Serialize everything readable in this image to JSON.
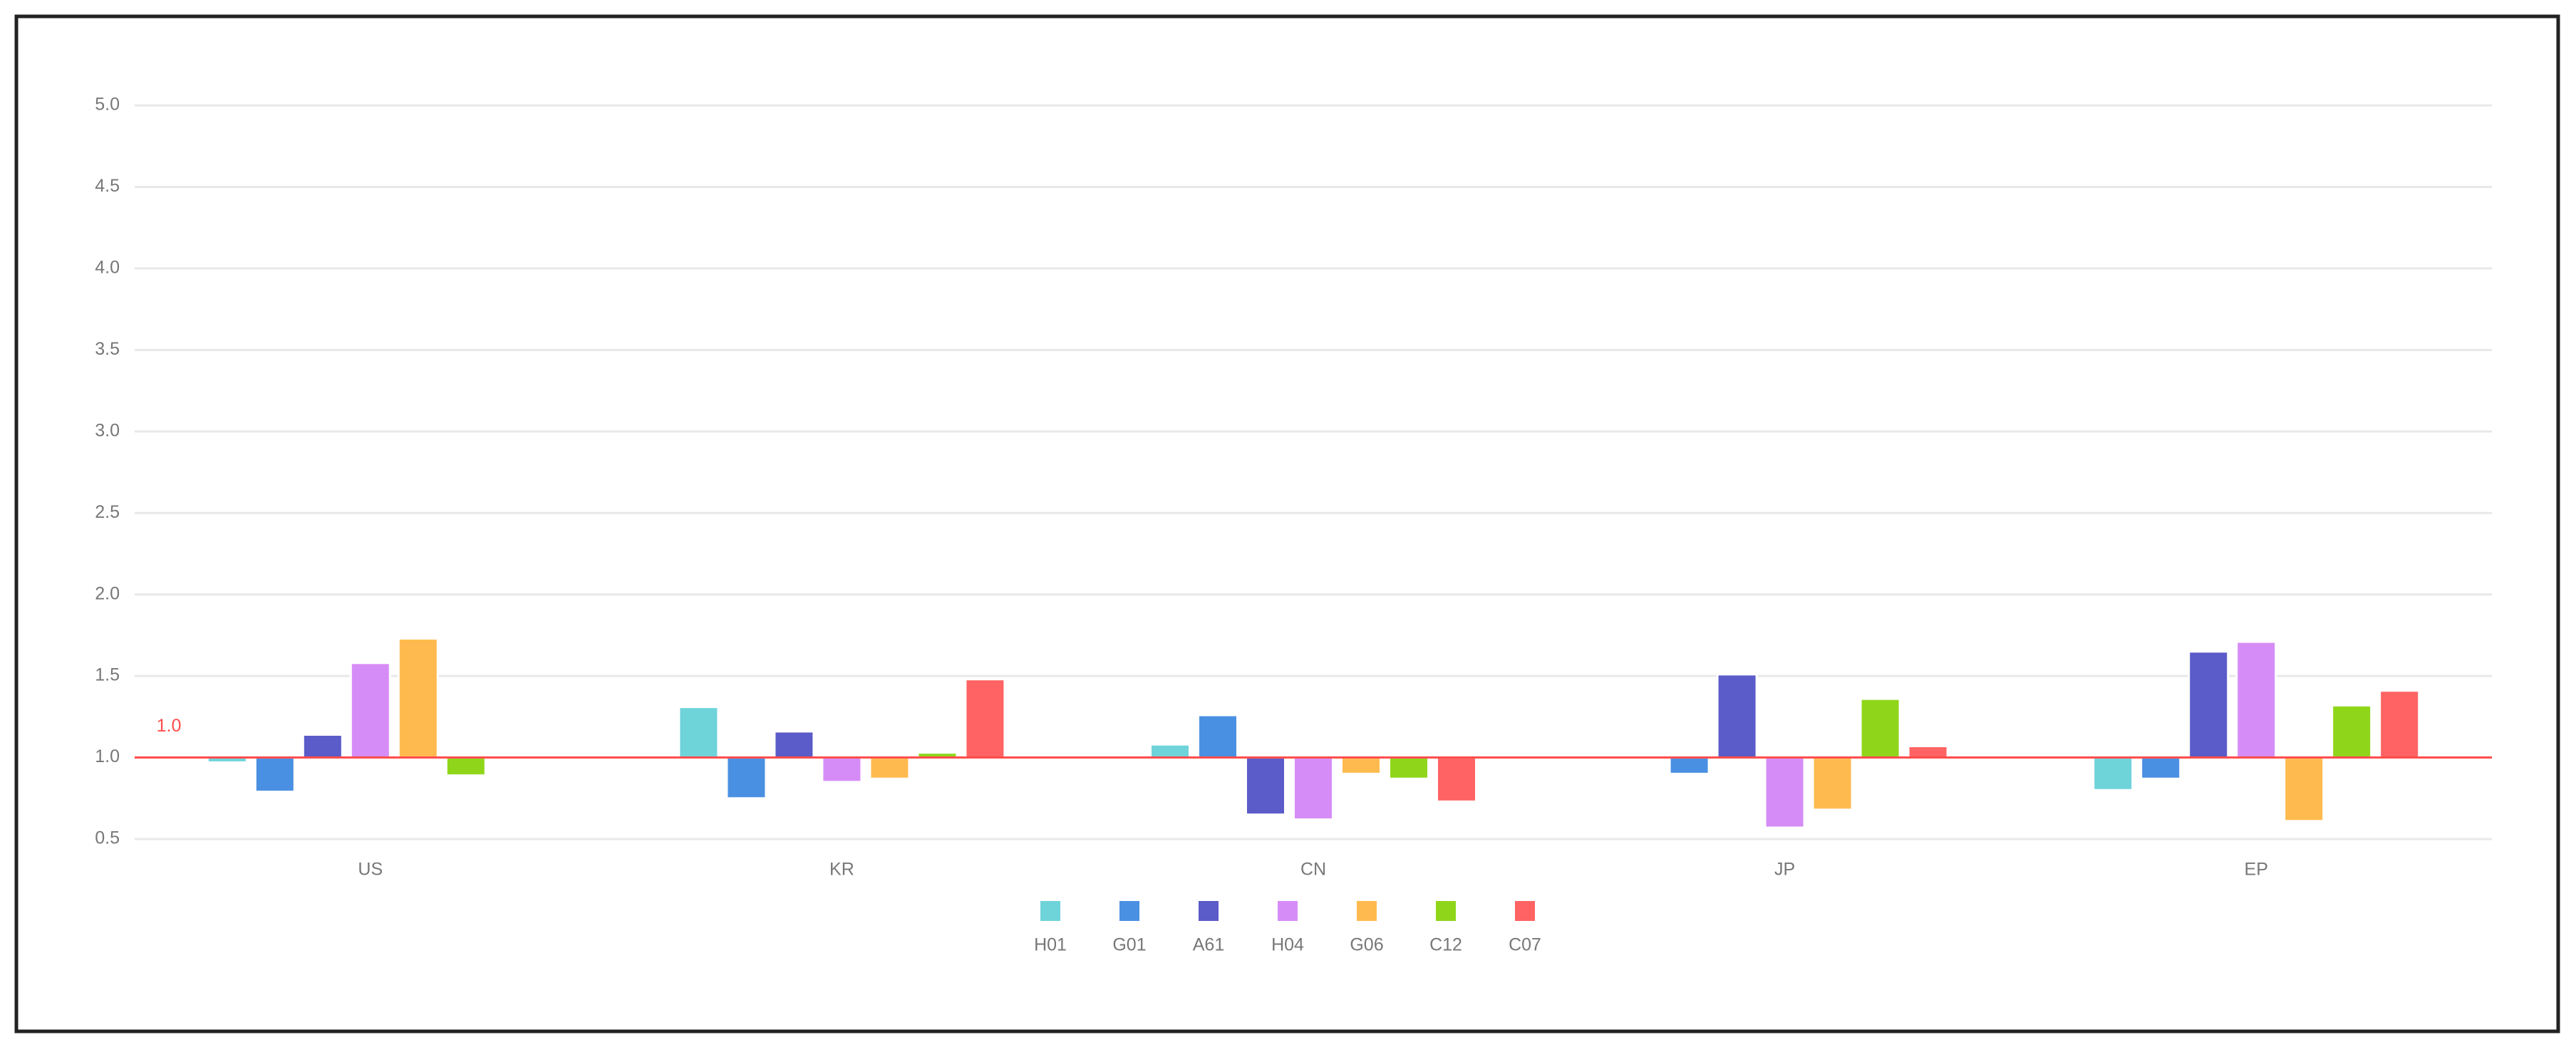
{
  "chart_data": {
    "type": "bar",
    "categories": [
      "US",
      "KR",
      "CN",
      "JP",
      "EP"
    ],
    "series": [
      {
        "name": "H01",
        "color": "#6fd3da",
        "values": [
          0.97,
          1.31,
          1.08,
          1.0,
          0.8
        ]
      },
      {
        "name": "G01",
        "color": "#4a90e2",
        "values": [
          0.79,
          0.75,
          1.26,
          0.9,
          0.87
        ]
      },
      {
        "name": "A61",
        "color": "#5b5bc9",
        "values": [
          1.14,
          1.16,
          0.65,
          1.51,
          1.65
        ]
      },
      {
        "name": "H04",
        "color": "#d68cf6",
        "values": [
          1.58,
          0.85,
          0.62,
          0.57,
          1.71
        ]
      },
      {
        "name": "G06",
        "color": "#ffba4f",
        "values": [
          1.73,
          0.87,
          0.9,
          0.68,
          0.61
        ]
      },
      {
        "name": "C12",
        "color": "#8fd61a",
        "values": [
          0.89,
          1.03,
          0.87,
          1.36,
          1.32
        ]
      },
      {
        "name": "C07",
        "color": "#ff6363",
        "values": [
          1.01,
          1.48,
          0.73,
          1.07,
          1.41
        ]
      }
    ],
    "ylim": [
      0.5,
      5.0
    ],
    "yticks": [
      {
        "value": 0.5,
        "label": "0.5"
      },
      {
        "value": 1,
        "label": "1.0"
      },
      {
        "value": 1.5,
        "label": "1.5"
      },
      {
        "value": 2,
        "label": "2.0"
      },
      {
        "value": 2.5,
        "label": "2.5"
      },
      {
        "value": 3,
        "label": "3.0"
      },
      {
        "value": 3.5,
        "label": "3.5"
      },
      {
        "value": 4,
        "label": "4.0"
      },
      {
        "value": 4.5,
        "label": "4.5"
      },
      {
        "value": 5,
        "label": "5.0"
      }
    ],
    "grid": true,
    "reference_line": {
      "value": 1,
      "label": "1.0",
      "color": "#ff4d4d"
    },
    "legend": "bottom"
  }
}
